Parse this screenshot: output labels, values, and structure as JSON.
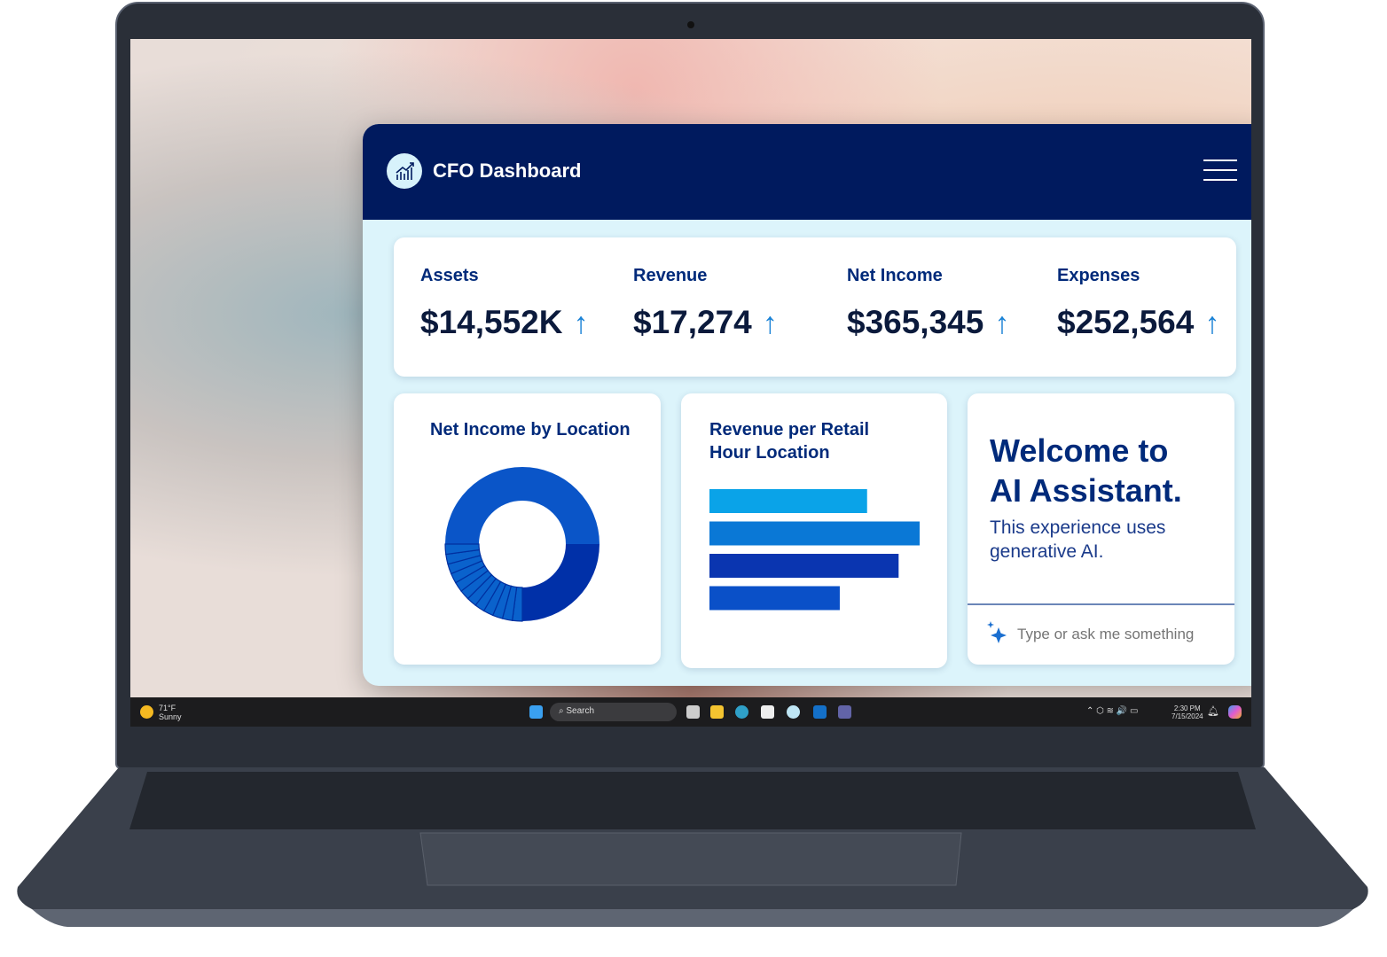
{
  "app": {
    "title": "CFO Dashboard",
    "logo_icon": "chart-growth-icon",
    "menu_icon": "hamburger-menu-icon"
  },
  "kpis": [
    {
      "label": "Assets",
      "value": "$14,552K",
      "trend": "up"
    },
    {
      "label": "Revenue",
      "value": "$17,274",
      "trend": "up"
    },
    {
      "label": "Net Income",
      "value": "$365,345",
      "trend": "up"
    },
    {
      "label": "Expenses",
      "value": "$252,564",
      "trend": "up"
    }
  ],
  "trend_arrow": "↑",
  "chart_data": [
    {
      "type": "pie",
      "title": "Net Income by Location",
      "donut": true,
      "values": [
        50,
        25,
        2.08,
        2.08,
        2.08,
        2.08,
        2.08,
        2.08,
        2.08,
        2.08,
        2.08,
        2.08,
        2.08,
        2.12
      ],
      "colors": [
        "#0a55c8",
        "#0030a8",
        "#0a62cc"
      ]
    },
    {
      "type": "bar",
      "orientation": "horizontal",
      "title": "Revenue per Retail Hour Location",
      "values": [
        75,
        100,
        90,
        62
      ],
      "colors": [
        "#0aa3e8",
        "#0a78d6",
        "#0a35b0",
        "#0a50c8"
      ]
    }
  ],
  "assistant": {
    "heading_line1": "Welcome to",
    "heading_line2": "AI Assistant.",
    "subtitle": "This experience uses generative AI.",
    "input_placeholder": "Type or ask me something",
    "input_icon": "sparkle-icon"
  },
  "taskbar": {
    "temperature": "71°F",
    "weather": "Sunny",
    "search_placeholder": "Search",
    "time": "2:30 PM",
    "date": "7/15/2024"
  },
  "colors": {
    "header": "#001a5e",
    "accent": "#1a82d6",
    "panel_bg": "#dcf4fb"
  }
}
